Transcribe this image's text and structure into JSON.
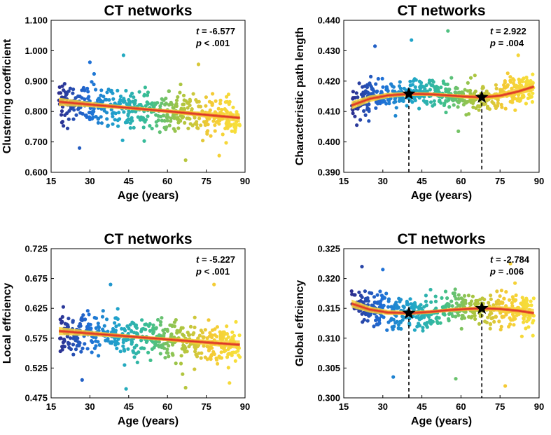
{
  "chart_data": [
    {
      "type": "scatter",
      "title": "CT networks",
      "xlabel": "Age (years)",
      "ylabel": "Clustering coefficient",
      "xlim": [
        15,
        90
      ],
      "ylim": [
        0.6,
        1.1
      ],
      "xticks": [
        "15",
        "30",
        "45",
        "60",
        "75",
        "90"
      ],
      "yticks": [
        "0.600",
        "0.700",
        "0.800",
        "0.900",
        "1.000",
        "1.100"
      ],
      "stat_t_label": "t",
      "stat_t_value": "= -6.577",
      "stat_p_label": "p",
      "stat_p_value": "< .001",
      "fit_curve": {
        "x": [
          18,
          30,
          45,
          60,
          75,
          88
        ],
        "y": [
          0.832,
          0.823,
          0.812,
          0.801,
          0.789,
          0.779
        ]
      },
      "points_per_band": 96,
      "scatter_center": {
        "x": [
          18,
          30,
          45,
          60,
          75,
          88
        ],
        "y": [
          0.832,
          0.823,
          0.812,
          0.801,
          0.789,
          0.779
        ]
      },
      "scatter_spread": 0.062,
      "extreme_points": [
        {
          "x": 43,
          "y": 0.985
        },
        {
          "x": 30,
          "y": 0.962
        },
        {
          "x": 72,
          "y": 0.955
        },
        {
          "x": 26,
          "y": 0.68
        },
        {
          "x": 80,
          "y": 0.655
        },
        {
          "x": 67,
          "y": 0.64
        }
      ],
      "markers": [],
      "color_gradient": [
        "#2d2f8f",
        "#1f6fd6",
        "#20a6c9",
        "#3cbf8f",
        "#a8c540",
        "#f4c935",
        "#f7e23b"
      ]
    },
    {
      "type": "scatter",
      "title": "CT networks",
      "xlabel": "Age (years)",
      "ylabel": "Characteristic path length",
      "xlim": [
        15,
        90
      ],
      "ylim": [
        0.39,
        0.44
      ],
      "xticks": [
        "15",
        "30",
        "45",
        "60",
        "75",
        "90"
      ],
      "yticks": [
        "0.390",
        "0.400",
        "0.410",
        "0.420",
        "0.430",
        "0.440"
      ],
      "stat_t_label": "t",
      "stat_t_value": "= 2.922",
      "stat_p_label": "p",
      "stat_p_value": "= .004",
      "fit_curve": {
        "x": [
          18,
          25,
          32,
          40,
          48,
          55,
          62,
          68,
          75,
          82,
          88
        ],
        "y": [
          0.412,
          0.4142,
          0.4153,
          0.4158,
          0.4157,
          0.4153,
          0.4149,
          0.4147,
          0.4152,
          0.4166,
          0.4182
        ]
      },
      "points_per_band": 96,
      "scatter_center": {
        "x": [
          18,
          25,
          32,
          40,
          48,
          55,
          62,
          68,
          75,
          82,
          88
        ],
        "y": [
          0.413,
          0.4148,
          0.4156,
          0.416,
          0.4158,
          0.4154,
          0.415,
          0.4148,
          0.4155,
          0.417,
          0.418
        ]
      },
      "scatter_spread": 0.0052,
      "extreme_points": [
        {
          "x": 41,
          "y": 0.4335
        },
        {
          "x": 55,
          "y": 0.4365
        },
        {
          "x": 27,
          "y": 0.4315
        },
        {
          "x": 82,
          "y": 0.4285
        },
        {
          "x": 59,
          "y": 0.4035
        },
        {
          "x": 20,
          "y": 0.4055
        }
      ],
      "markers": [
        {
          "x": 40,
          "y": 0.4158
        },
        {
          "x": 68,
          "y": 0.4147
        }
      ],
      "color_gradient": [
        "#2d2f8f",
        "#1f6fd6",
        "#20a6c9",
        "#3cbf8f",
        "#a8c540",
        "#f4c935",
        "#f7e23b"
      ]
    },
    {
      "type": "scatter",
      "title": "CT networks",
      "xlabel": "Age (years)",
      "ylabel": "Local effciency",
      "xlim": [
        15,
        90
      ],
      "ylim": [
        0.475,
        0.725
      ],
      "xticks": [
        "15",
        "30",
        "45",
        "60",
        "75",
        "90"
      ],
      "yticks": [
        "0.475",
        "0.525",
        "0.575",
        "0.625",
        "0.675",
        "0.725"
      ],
      "stat_t_label": "t",
      "stat_t_value": "= -5.227",
      "stat_p_label": "p",
      "stat_p_value": "< .001",
      "fit_curve": {
        "x": [
          18,
          30,
          45,
          60,
          75,
          88
        ],
        "y": [
          0.587,
          0.583,
          0.578,
          0.573,
          0.568,
          0.564
        ]
      },
      "points_per_band": 96,
      "scatter_center": {
        "x": [
          18,
          30,
          45,
          60,
          75,
          88
        ],
        "y": [
          0.587,
          0.583,
          0.578,
          0.573,
          0.568,
          0.564
        ]
      },
      "scatter_spread": 0.034,
      "extreme_points": [
        {
          "x": 38,
          "y": 0.665
        },
        {
          "x": 78,
          "y": 0.665
        },
        {
          "x": 44,
          "y": 0.49
        },
        {
          "x": 67,
          "y": 0.492
        },
        {
          "x": 84,
          "y": 0.5
        },
        {
          "x": 27,
          "y": 0.505
        }
      ],
      "markers": [],
      "color_gradient": [
        "#2d2f8f",
        "#1f6fd6",
        "#20a6c9",
        "#3cbf8f",
        "#a8c540",
        "#f4c935",
        "#f7e23b"
      ]
    },
    {
      "type": "scatter",
      "title": "CT networks",
      "xlabel": "Age (years)",
      "ylabel": "Global effciency",
      "xlim": [
        15,
        90
      ],
      "ylim": [
        0.3,
        0.325
      ],
      "xticks": [
        "15",
        "30",
        "45",
        "60",
        "75",
        "90"
      ],
      "yticks": [
        "0.300",
        "0.305",
        "0.310",
        "0.315",
        "0.320",
        "0.325"
      ],
      "stat_t_label": "t",
      "stat_t_value": "= -2.784",
      "stat_p_label": "p",
      "stat_p_value": "= .006",
      "fit_curve": {
        "x": [
          18,
          25,
          32,
          40,
          48,
          55,
          62,
          68,
          75,
          82,
          88
        ],
        "y": [
          0.3158,
          0.3148,
          0.3143,
          0.3142,
          0.3144,
          0.3147,
          0.3149,
          0.315,
          0.3149,
          0.3146,
          0.3142
        ]
      },
      "points_per_band": 96,
      "scatter_center": {
        "x": [
          18,
          25,
          32,
          40,
          48,
          55,
          62,
          68,
          75,
          82,
          88
        ],
        "y": [
          0.3155,
          0.3148,
          0.3143,
          0.3142,
          0.3144,
          0.3147,
          0.3149,
          0.315,
          0.3149,
          0.3146,
          0.3142
        ]
      },
      "scatter_spread": 0.0028,
      "extreme_points": [
        {
          "x": 22,
          "y": 0.322
        },
        {
          "x": 79,
          "y": 0.3225
        },
        {
          "x": 30,
          "y": 0.3215
        },
        {
          "x": 34,
          "y": 0.3035
        },
        {
          "x": 58,
          "y": 0.3032
        },
        {
          "x": 77,
          "y": 0.302
        }
      ],
      "markers": [
        {
          "x": 40,
          "y": 0.3142
        },
        {
          "x": 68,
          "y": 0.315
        }
      ],
      "color_gradient": [
        "#2d2f8f",
        "#1f6fd6",
        "#20a6c9",
        "#3cbf8f",
        "#a8c540",
        "#f4c935",
        "#f7e23b"
      ]
    }
  ]
}
